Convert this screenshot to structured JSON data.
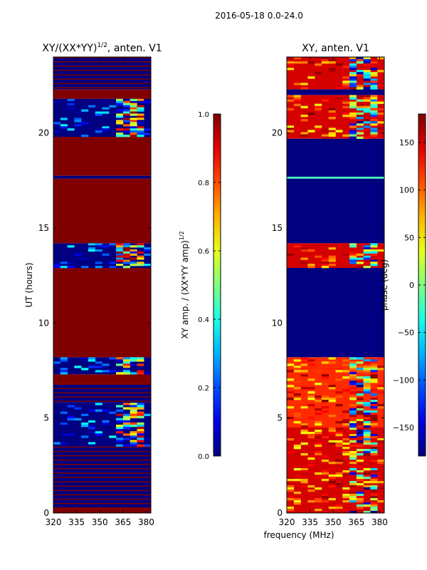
{
  "figure": {
    "suptitle": "2016-05-18 0.0-24.0",
    "xlabel": "frequency (MHz)"
  },
  "chart_data": [
    {
      "type": "heatmap",
      "title_main": "XY/(XX*YY)",
      "title_exp": "1/2",
      "title_tail": ", anten. V1",
      "xlabel": "",
      "ylabel": "UT (hours)",
      "xlim": [
        320,
        383
      ],
      "ylim": [
        0,
        24
      ],
      "xticks": [
        320,
        335,
        350,
        365,
        380
      ],
      "yticks": [
        0,
        5,
        10,
        15,
        20
      ],
      "colorbar": {
        "label_main": "XY amp. / (XX*YY amp)",
        "label_exp": "1/2",
        "range": [
          0.0,
          1.0
        ],
        "ticks": [
          0.0,
          0.2,
          0.4,
          0.6,
          0.8,
          1.0
        ],
        "tick_labels": [
          "0.0",
          "0.2",
          "0.4",
          "0.6",
          "0.8",
          "1.0"
        ],
        "colormap": "jet"
      },
      "bands": [
        {
          "from": 0.0,
          "to": 0.3,
          "value": 1.0
        },
        {
          "from": 0.3,
          "to": 3.5,
          "value": 0.0,
          "striped": true
        },
        {
          "from": 3.5,
          "to": 5.8,
          "value": 0.0,
          "noisy": true
        },
        {
          "from": 5.8,
          "to": 6.8,
          "value": 0.0,
          "striped": true
        },
        {
          "from": 6.8,
          "to": 7.3,
          "value": 1.0
        },
        {
          "from": 7.3,
          "to": 8.2,
          "value": 0.0,
          "noisy": true
        },
        {
          "from": 8.2,
          "to": 12.9,
          "value": 1.0
        },
        {
          "from": 12.9,
          "to": 14.2,
          "value": 0.0,
          "noisy": true
        },
        {
          "from": 14.2,
          "to": 17.6,
          "value": 1.0
        },
        {
          "from": 17.6,
          "to": 17.75,
          "value": 0.0
        },
        {
          "from": 17.75,
          "to": 19.8,
          "value": 1.0
        },
        {
          "from": 19.8,
          "to": 21.8,
          "value": 0.0,
          "noisy": true
        },
        {
          "from": 21.8,
          "to": 22.3,
          "value": 1.0
        },
        {
          "from": 22.3,
          "to": 24.0,
          "value": 0.0,
          "striped": true
        }
      ]
    },
    {
      "type": "heatmap",
      "title_main": "XY, anten. V1",
      "title_exp": "",
      "title_tail": "",
      "xlabel": "frequency (MHz)",
      "ylabel": "",
      "xlim": [
        320,
        383
      ],
      "ylim": [
        0,
        24
      ],
      "xticks": [
        320,
        335,
        350,
        365,
        380
      ],
      "yticks": [
        0,
        5,
        10,
        15,
        20
      ],
      "colorbar": {
        "label_main": "phase (deg)",
        "label_exp": "",
        "range": [
          -180,
          180
        ],
        "ticks": [
          -150,
          -100,
          -50,
          0,
          50,
          100,
          150
        ],
        "tick_labels": [
          "−150",
          "−100",
          "−50",
          "0",
          "50",
          "100",
          "150"
        ],
        "colormap": "jet"
      },
      "bands": [
        {
          "from": 0.0,
          "to": 4.5,
          "value": 150,
          "noisy": true
        },
        {
          "from": 4.5,
          "to": 8.2,
          "value": 120,
          "noisy": true
        },
        {
          "from": 8.2,
          "to": 12.9,
          "value": -180
        },
        {
          "from": 12.9,
          "to": 14.2,
          "value": 150,
          "noisy": true
        },
        {
          "from": 14.2,
          "to": 17.6,
          "value": -180
        },
        {
          "from": 17.6,
          "to": 17.7,
          "value": -20
        },
        {
          "from": 17.7,
          "to": 19.7,
          "value": -180
        },
        {
          "from": 19.7,
          "to": 22.0,
          "value": 150,
          "noisy": true
        },
        {
          "from": 22.0,
          "to": 22.3,
          "value": -180
        },
        {
          "from": 22.3,
          "to": 24.0,
          "value": 150,
          "noisy": true
        }
      ]
    }
  ]
}
